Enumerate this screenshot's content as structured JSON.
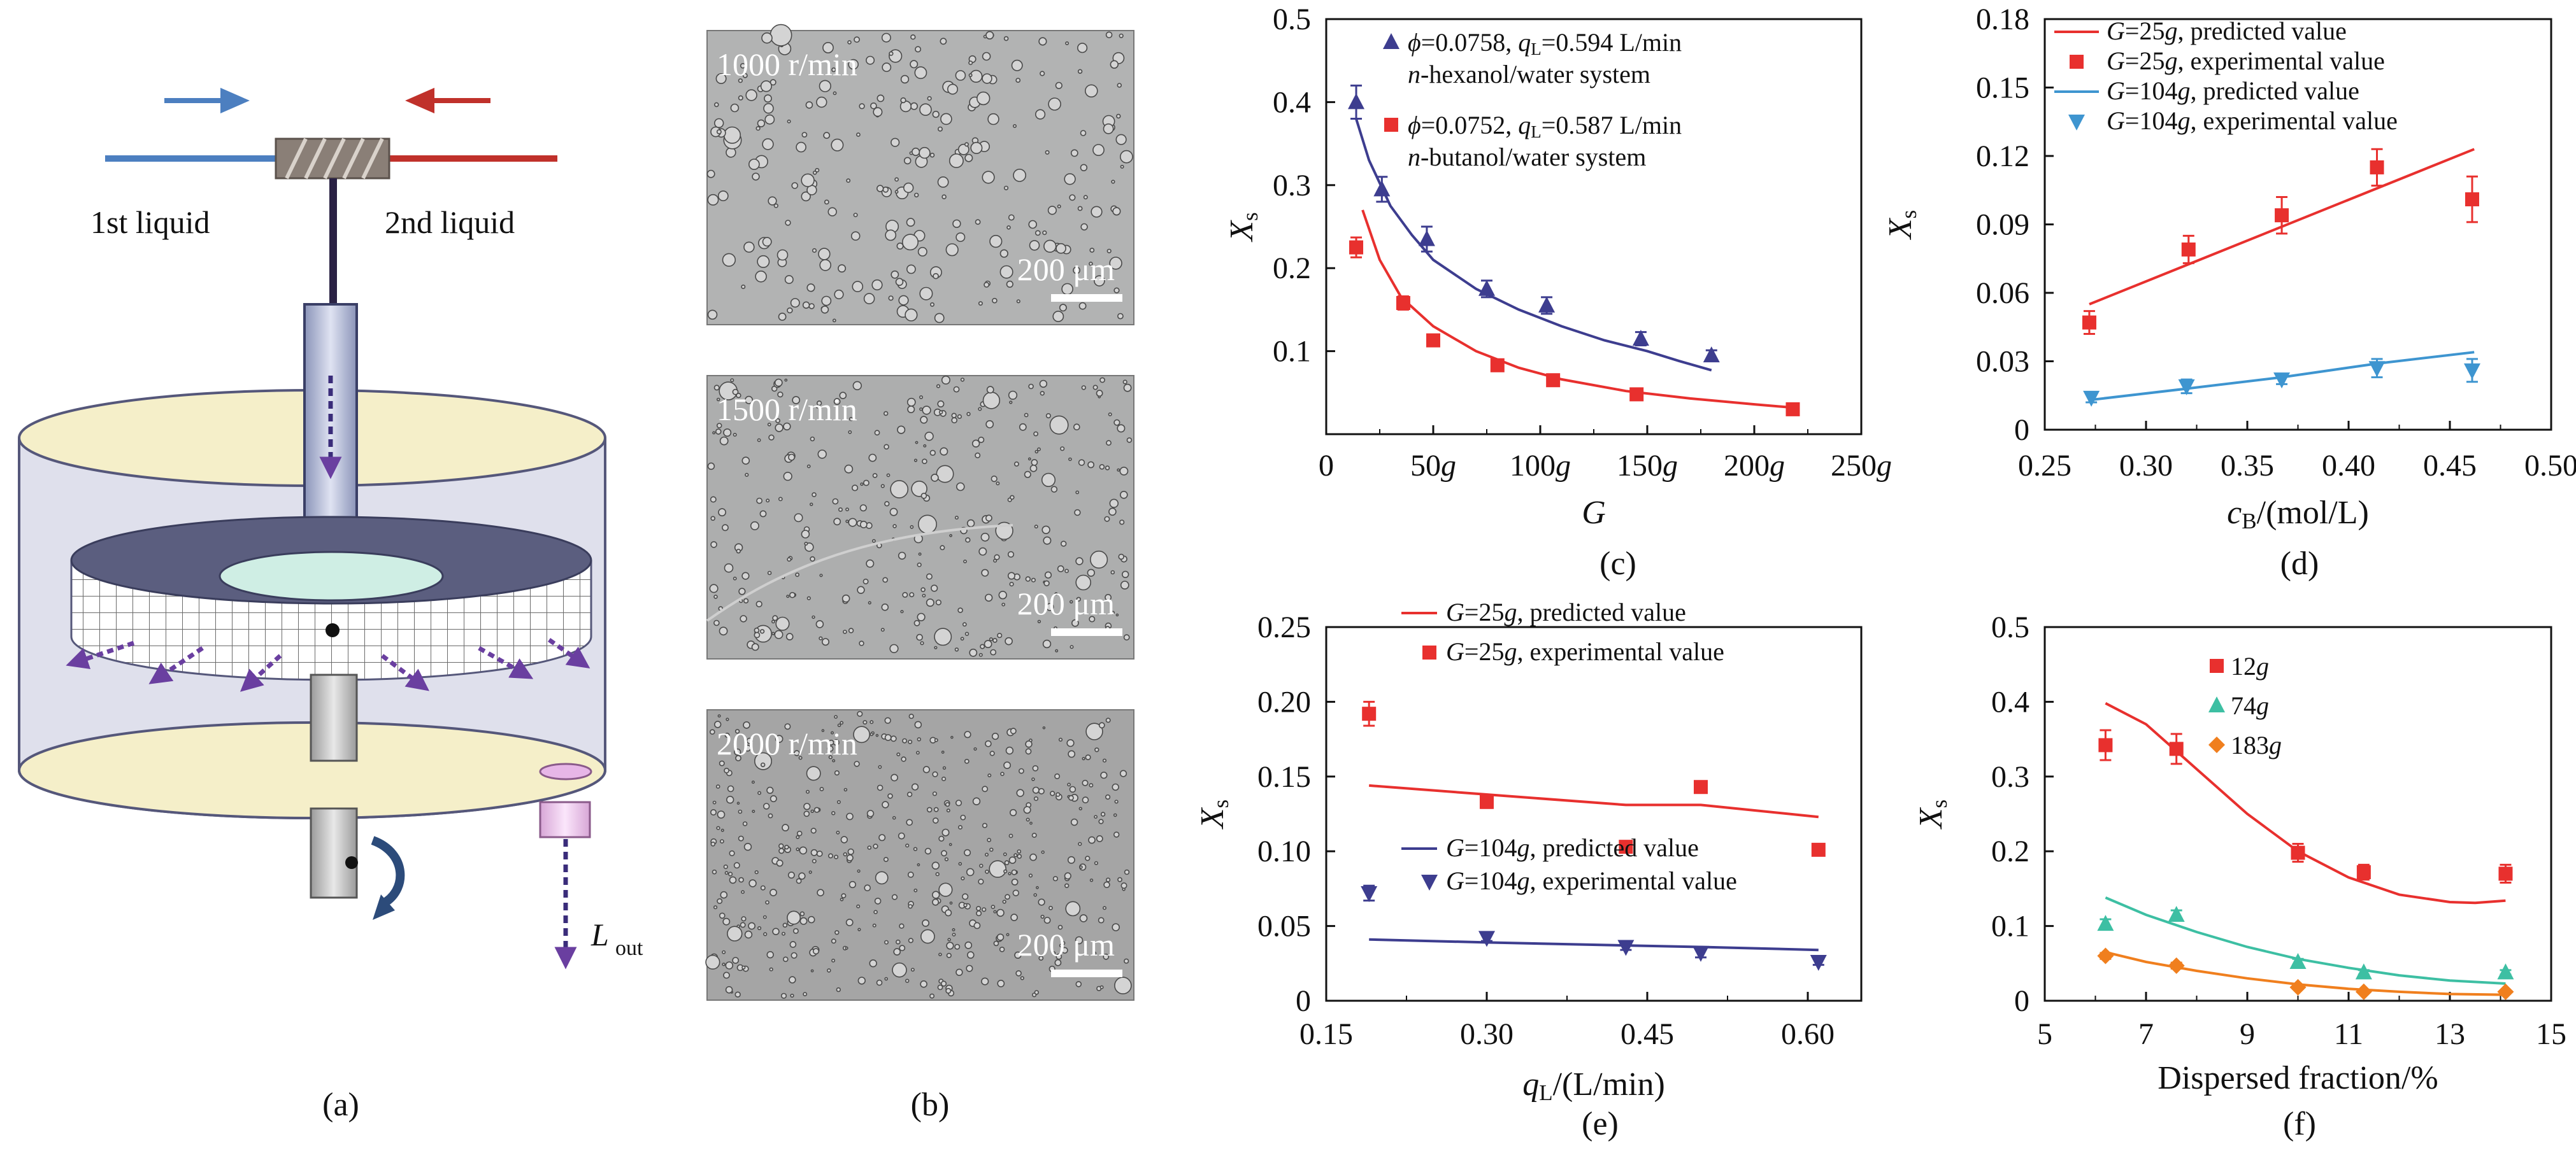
{
  "colors": {
    "red": "#e8302e",
    "blue": "#3d3d8f",
    "lightblue": "#3e95d0",
    "teal": "#3dbfa3",
    "orange": "#f07f1e"
  },
  "diagram": {
    "label": "(a)",
    "liquid1": "1st liquid",
    "liquid2": "2nd liquid",
    "outlet_main": "L",
    "outlet_sub": "out"
  },
  "micrographs": {
    "label": "(b)",
    "panels": [
      {
        "speed": "1000 r/min",
        "scale": "200 μm"
      },
      {
        "speed": "1500 r/min",
        "scale": "200 μm"
      },
      {
        "speed": "2000 r/min",
        "scale": "200 μm"
      }
    ]
  },
  "chart_data": [
    {
      "panel": "(c)",
      "type": "scatter",
      "xlabel": "G",
      "ylabel": "Xs",
      "xlim": [
        0,
        250
      ],
      "ylim": [
        0,
        0.5
      ],
      "x_ticks": [
        "0",
        "50g",
        "100g",
        "150g",
        "200g",
        "250g"
      ],
      "y_ticks": [
        "0.1",
        "0.2",
        "0.3",
        "0.4",
        "0.5"
      ],
      "legend": [
        {
          "line1": "ϕ=0.0758, qL=0.594 L/min",
          "line2": "n-hexanol/water system"
        },
        {
          "line1": "ϕ=0.0752, qL=0.587 L/min",
          "line2": "n-butanol/water system"
        }
      ],
      "series": [
        {
          "name": "ϕ=0.0758, qL=0.594 L/min n-hexanol/water system",
          "color": "#3d3d8f",
          "marker": "triangle",
          "points": [
            [
              14,
              0.4
            ],
            [
              26,
              0.295
            ],
            [
              47,
              0.235
            ],
            [
              75,
              0.175
            ],
            [
              103,
              0.155
            ],
            [
              147,
              0.115
            ],
            [
              180,
              0.095
            ]
          ],
          "errors": [
            0.02,
            0.015,
            0.015,
            0.01,
            0.01,
            0.008,
            0.006
          ],
          "curve": [
            [
              14,
              0.38
            ],
            [
              20,
              0.33
            ],
            [
              30,
              0.275
            ],
            [
              40,
              0.24
            ],
            [
              50,
              0.21
            ],
            [
              70,
              0.175
            ],
            [
              90,
              0.15
            ],
            [
              110,
              0.13
            ],
            [
              130,
              0.113
            ],
            [
              150,
              0.1
            ],
            [
              165,
              0.088
            ],
            [
              180,
              0.077
            ]
          ]
        },
        {
          "name": "ϕ=0.0752, qL=0.587 L/min n-butanol/water system",
          "color": "#e8302e",
          "marker": "square",
          "points": [
            [
              14,
              0.225
            ],
            [
              36,
              0.158
            ],
            [
              50,
              0.113
            ],
            [
              80,
              0.083
            ],
            [
              106,
              0.065
            ],
            [
              145,
              0.048
            ],
            [
              218,
              0.03
            ]
          ],
          "errors": [
            0.012,
            0.008,
            0.005,
            0.004,
            0.003,
            0.003,
            0.002
          ],
          "curve": [
            [
              17,
              0.27
            ],
            [
              25,
              0.21
            ],
            [
              35,
              0.165
            ],
            [
              50,
              0.13
            ],
            [
              70,
              0.1
            ],
            [
              90,
              0.08
            ],
            [
              110,
              0.066
            ],
            [
              140,
              0.052
            ],
            [
              170,
              0.043
            ],
            [
              200,
              0.036
            ],
            [
              218,
              0.032
            ]
          ]
        }
      ]
    },
    {
      "panel": "(d)",
      "type": "scatter",
      "xlabel": "cB/(mol/L)",
      "ylabel": "Xs",
      "xlim": [
        0.25,
        0.5
      ],
      "ylim": [
        0,
        0.18
      ],
      "x_ticks": [
        "0.25",
        "0.30",
        "0.35",
        "0.40",
        "0.45",
        "0.50"
      ],
      "y_ticks": [
        "0",
        "0.03",
        "0.06",
        "0.09",
        "0.12",
        "0.15",
        "0.18"
      ],
      "legend": [
        {
          "text": "G=25g, predicted value"
        },
        {
          "text": "G=25g, experimental value"
        },
        {
          "text": "G=104g, predicted value"
        },
        {
          "text": "G=104g, experimental value"
        }
      ],
      "series": [
        {
          "name": "G=25g, predicted value",
          "color": "#e8302e",
          "marker": "line",
          "curve": [
            [
              0.272,
              0.055
            ],
            [
              0.462,
              0.123
            ]
          ]
        },
        {
          "name": "G=25g, experimental value",
          "color": "#e8302e",
          "marker": "square",
          "points": [
            [
              0.272,
              0.047
            ],
            [
              0.321,
              0.079
            ],
            [
              0.367,
              0.094
            ],
            [
              0.414,
              0.115
            ],
            [
              0.461,
              0.101
            ]
          ],
          "errors": [
            0.005,
            0.006,
            0.008,
            0.008,
            0.01
          ]
        },
        {
          "name": "G=104g, predicted value",
          "color": "#3e95d0",
          "marker": "line",
          "curve": [
            [
              0.272,
              0.013
            ],
            [
              0.32,
              0.018
            ],
            [
              0.367,
              0.023
            ],
            [
              0.414,
              0.029
            ],
            [
              0.462,
              0.034
            ]
          ]
        },
        {
          "name": "G=104g, experimental value",
          "color": "#3e95d0",
          "marker": "triangle-down",
          "points": [
            [
              0.273,
              0.014
            ],
            [
              0.32,
              0.019
            ],
            [
              0.367,
              0.022
            ],
            [
              0.414,
              0.027
            ],
            [
              0.461,
              0.026
            ]
          ],
          "errors": [
            0.002,
            0.003,
            0.002,
            0.004,
            0.005
          ]
        }
      ]
    },
    {
      "panel": "(e)",
      "type": "scatter",
      "xlabel": "qL/(L/min)",
      "ylabel": "Xs",
      "xlim": [
        0.15,
        0.65
      ],
      "ylim": [
        0,
        0.25
      ],
      "x_ticks": [
        "0.15",
        "0.30",
        "0.45",
        "0.60"
      ],
      "x_tick_values": [
        0.15,
        0.3,
        0.45,
        0.6
      ],
      "y_ticks": [
        "0",
        "0.05",
        "0.10",
        "0.15",
        "0.20",
        "0.25"
      ],
      "legend": [
        {
          "text": "G=25g, predicted value"
        },
        {
          "text": "G=25g, experimental value"
        },
        {
          "text": "G=104g, predicted value"
        },
        {
          "text": "G=104g, experimental value"
        }
      ],
      "series": [
        {
          "name": "G=25g, predicted value",
          "color": "#e8302e",
          "marker": "line",
          "curve": [
            [
              0.19,
              0.144
            ],
            [
              0.3,
              0.138
            ],
            [
              0.43,
              0.131
            ],
            [
              0.5,
              0.131
            ],
            [
              0.61,
              0.123
            ]
          ]
        },
        {
          "name": "G=25g, experimental value",
          "color": "#e8302e",
          "marker": "square",
          "points": [
            [
              0.19,
              0.192
            ],
            [
              0.3,
              0.133
            ],
            [
              0.43,
              0.103
            ],
            [
              0.5,
              0.143
            ],
            [
              0.61,
              0.101
            ]
          ],
          "errors": [
            0.008,
            0.004,
            0.003,
            0.003,
            0.003
          ]
        },
        {
          "name": "G=104g, predicted value",
          "color": "#3d3d8f",
          "marker": "line",
          "curve": [
            [
              0.19,
              0.041
            ],
            [
              0.3,
              0.039
            ],
            [
              0.43,
              0.037
            ],
            [
              0.5,
              0.036
            ],
            [
              0.61,
              0.034
            ]
          ]
        },
        {
          "name": "G=104g, experimental value",
          "color": "#3d3d8f",
          "marker": "triangle-down",
          "points": [
            [
              0.19,
              0.072
            ],
            [
              0.3,
              0.042
            ],
            [
              0.43,
              0.036
            ],
            [
              0.5,
              0.032
            ],
            [
              0.61,
              0.026
            ]
          ],
          "errors": [
            0.005,
            0.002,
            0.002,
            0.003,
            0.002
          ]
        }
      ]
    },
    {
      "panel": "(f)",
      "type": "scatter",
      "xlabel": "Dispersed fraction/%",
      "ylabel": "Xs",
      "xlim": [
        5,
        15
      ],
      "ylim": [
        0,
        0.5
      ],
      "x_ticks": [
        "5",
        "7",
        "9",
        "11",
        "13",
        "15"
      ],
      "y_ticks": [
        "0",
        "0.1",
        "0.2",
        "0.3",
        "0.4",
        "0.5"
      ],
      "legend": [
        {
          "text": "12g"
        },
        {
          "text": "74g"
        },
        {
          "text": "183g"
        }
      ],
      "series": [
        {
          "name": "12g",
          "color": "#e8302e",
          "marker": "square",
          "points": [
            [
              6.2,
              0.342
            ],
            [
              7.6,
              0.337
            ],
            [
              10.0,
              0.198
            ],
            [
              11.3,
              0.172
            ],
            [
              14.1,
              0.17
            ]
          ],
          "errors": [
            0.02,
            0.02,
            0.012,
            0.01,
            0.012
          ],
          "curve": [
            [
              6.2,
              0.398
            ],
            [
              7,
              0.37
            ],
            [
              8,
              0.31
            ],
            [
              9,
              0.25
            ],
            [
              10,
              0.2
            ],
            [
              11,
              0.165
            ],
            [
              12,
              0.142
            ],
            [
              13,
              0.132
            ],
            [
              13.5,
              0.131
            ],
            [
              14.1,
              0.134
            ]
          ]
        },
        {
          "name": "74g",
          "color": "#3dbfa3",
          "marker": "triangle",
          "points": [
            [
              6.2,
              0.103
            ],
            [
              7.6,
              0.115
            ],
            [
              10.0,
              0.052
            ],
            [
              11.3,
              0.038
            ],
            [
              14.1,
              0.038
            ]
          ],
          "errors": [
            0.006,
            0.006,
            0.004,
            0.003,
            0.003
          ],
          "curve": [
            [
              6.2,
              0.138
            ],
            [
              7,
              0.115
            ],
            [
              8,
              0.092
            ],
            [
              9,
              0.072
            ],
            [
              10,
              0.056
            ],
            [
              11,
              0.044
            ],
            [
              12,
              0.034
            ],
            [
              13,
              0.027
            ],
            [
              14.1,
              0.023
            ]
          ]
        },
        {
          "name": "183g",
          "color": "#f07f1e",
          "marker": "diamond",
          "points": [
            [
              6.2,
              0.06
            ],
            [
              7.6,
              0.047
            ],
            [
              10.0,
              0.018
            ],
            [
              11.3,
              0.012
            ],
            [
              14.1,
              0.012
            ]
          ],
          "errors": [
            0.004,
            0.004,
            0.002,
            0.002,
            0.002
          ],
          "curve": [
            [
              6.2,
              0.065
            ],
            [
              7,
              0.052
            ],
            [
              8,
              0.04
            ],
            [
              9,
              0.03
            ],
            [
              10,
              0.022
            ],
            [
              11,
              0.016
            ],
            [
              12,
              0.012
            ],
            [
              13,
              0.009
            ],
            [
              14.1,
              0.008
            ]
          ]
        }
      ]
    }
  ]
}
